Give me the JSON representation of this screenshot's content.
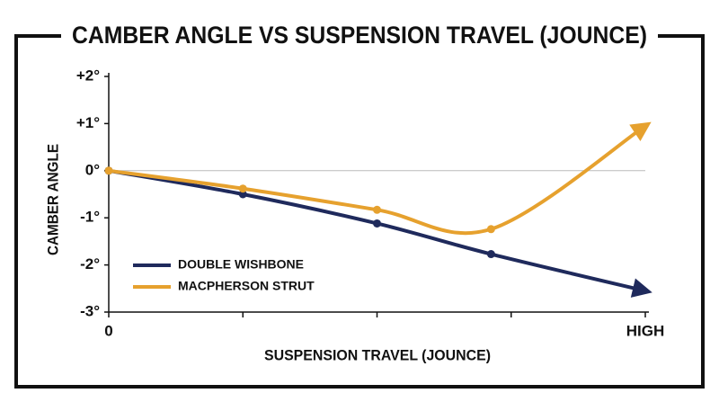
{
  "chart_data": {
    "type": "line",
    "title": "CAMBER ANGLE VS SUSPENSION TRAVEL (JOUNCE)",
    "x_label": "SUSPENSION TRAVEL (JOUNCE)",
    "y_label": "CAMBER ANGLE",
    "x": [
      0,
      1,
      2,
      2.85,
      4
    ],
    "xlim": [
      0,
      4
    ],
    "xticks": [
      0,
      {
        "value": 4,
        "label": "HIGH"
      }
    ],
    "minor_xticks": [
      1,
      2,
      3
    ],
    "ylim": [
      -3,
      2
    ],
    "yticks": [
      {
        "value": 2,
        "label": "+2°"
      },
      {
        "value": 1,
        "label": "+1°"
      },
      {
        "value": 0,
        "label": "0°"
      },
      {
        "value": -1,
        "label": "-1°"
      },
      {
        "value": -2,
        "label": "-2°"
      },
      {
        "value": -3,
        "label": "-3°"
      }
    ],
    "zero_line": true,
    "legend": "lower left",
    "series": [
      {
        "name": "DOUBLE WISHBONE",
        "color": "#1f2a5c",
        "values": [
          0,
          -0.5,
          -1.12,
          -1.77,
          -2.55
        ]
      },
      {
        "name": "MACPHERSON STRUT",
        "color": "#e6a12e",
        "values": [
          0,
          -0.38,
          -0.83,
          -1.24,
          0.95
        ]
      }
    ]
  }
}
